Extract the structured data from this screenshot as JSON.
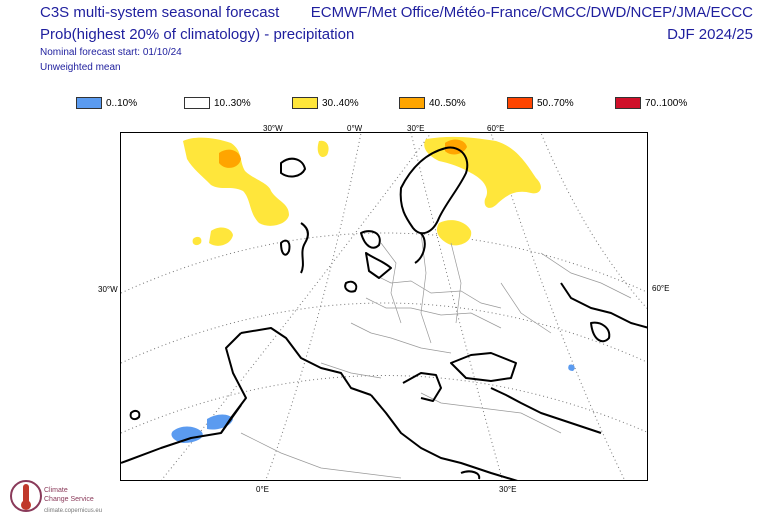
{
  "header": {
    "title_line1": "C3S multi-system seasonal forecast",
    "title_line2": "Prob(highest 20% of climatology) - precipitation",
    "subtitle_line1": "Nominal forecast start: 01/10/24",
    "subtitle_line2": "Unweighted mean",
    "centres": "ECMWF/Met Office/Météo-France/CMCC/DWD/NCEP/JMA/ECCC",
    "season": "DJF 2024/25"
  },
  "legend": [
    {
      "label": "0..10%",
      "color": "#5b9bf0"
    },
    {
      "label": "10..30%",
      "color": "#ffffff"
    },
    {
      "label": "30..40%",
      "color": "#ffe63b"
    },
    {
      "label": "40..50%",
      "color": "#ffa500"
    },
    {
      "label": "50..70%",
      "color": "#ff4500"
    },
    {
      "label": "70..100%",
      "color": "#d0102a"
    }
  ],
  "gridlabels": {
    "top_30w": "30°W",
    "top_0w": "0°W",
    "top_30e": "30°E",
    "top_60e": "60°E",
    "left_30w": "30°W",
    "right_60e": "60°E",
    "bottom_0e": "0°E",
    "bottom_30e": "30°E"
  },
  "logo": {
    "line1": "Climate",
    "line2": "Change Service",
    "url": "climate.copernicus.eu"
  }
}
